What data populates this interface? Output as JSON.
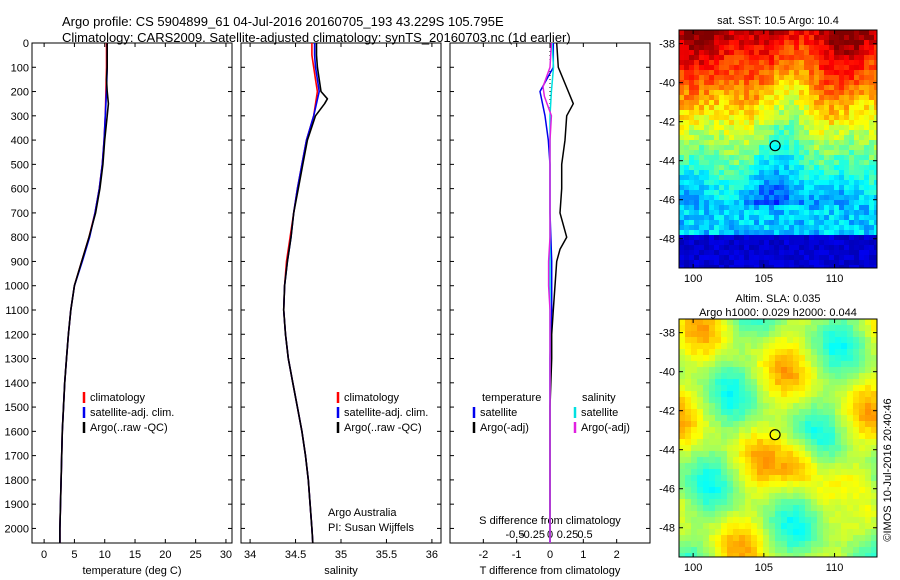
{
  "header": {
    "line1": "Argo profile: CS 5904899_61 04-Jul-2016 20160705_193 43.229S 105.795E",
    "line2": "Climatology: CARS2009. Satellite-adjusted climatology: synTS_20160703.nc (1d earlier)"
  },
  "colors": {
    "climatology": "#ff0000",
    "satellite": "#0000ee",
    "argo": "#000000",
    "satellite_salinity": "#00e0e0",
    "argo_salinity": "#e020e0"
  },
  "chart_data": [
    {
      "type": "line",
      "xlabel": "temperature (deg C)",
      "xticks": [
        0,
        5,
        10,
        15,
        20,
        25,
        30
      ],
      "xlim": [
        -2,
        31
      ],
      "yticks": [
        0,
        100,
        200,
        300,
        400,
        500,
        600,
        700,
        800,
        900,
        1000,
        1100,
        1200,
        1300,
        1400,
        1500,
        1600,
        1700,
        1800,
        1900,
        2000
      ],
      "ylim": [
        2060,
        0
      ],
      "legend": [
        "climatology",
        "satellite-adj. clim.",
        "Argo(..raw -QC)"
      ],
      "series": [
        {
          "name": "climatology",
          "depth": [
            0,
            50,
            100,
            200,
            300,
            400,
            500,
            600,
            700,
            800,
            900,
            1000,
            1100,
            1200,
            1300,
            1400,
            1500,
            1600,
            1700,
            1800,
            1900,
            2000,
            2060
          ],
          "values": [
            10.3,
            10.3,
            10.3,
            10.2,
            10.1,
            9.9,
            9.6,
            9.1,
            8.4,
            7.4,
            6.2,
            5.0,
            4.4,
            4.0,
            3.7,
            3.4,
            3.2,
            3.0,
            2.9,
            2.8,
            2.7,
            2.6,
            2.6
          ]
        },
        {
          "name": "satellite-adj. clim.",
          "depth": [
            0,
            50,
            100,
            200,
            300,
            400,
            500,
            600,
            700,
            800,
            900,
            1000,
            1100,
            1200,
            1300,
            1400,
            1500,
            1600,
            1700,
            1800,
            1900,
            2000,
            2060
          ],
          "values": [
            10.4,
            10.4,
            10.4,
            10.3,
            10.1,
            9.9,
            9.6,
            9.1,
            8.4,
            7.5,
            6.3,
            5.0,
            4.4,
            4.0,
            3.7,
            3.4,
            3.2,
            3.0,
            2.9,
            2.8,
            2.7,
            2.6,
            2.6
          ]
        },
        {
          "name": "Argo(..raw -QC)",
          "depth": [
            0,
            50,
            100,
            150,
            200,
            250,
            300,
            400,
            500,
            600,
            700,
            800,
            900,
            1000,
            1100,
            1200,
            1300,
            1400,
            1500,
            1600,
            1700,
            1800,
            1900,
            2000,
            2060
          ],
          "values": [
            10.4,
            10.4,
            10.4,
            10.3,
            10.4,
            10.6,
            10.4,
            10.0,
            9.7,
            9.2,
            8.5,
            7.4,
            6.2,
            5.0,
            4.4,
            4.0,
            3.7,
            3.4,
            3.2,
            3.0,
            2.9,
            2.8,
            2.7,
            2.6,
            2.6
          ]
        }
      ]
    },
    {
      "type": "line",
      "xlabel": "salinity",
      "xticks": [
        34,
        34.5,
        35,
        35.5,
        36
      ],
      "xticklabels": [
        "34",
        "34.5",
        "35",
        "35.5",
        "36"
      ],
      "xlim": [
        33.9,
        36.1
      ],
      "ylim": [
        2060,
        0
      ],
      "legend": [
        "climatology",
        "satellite-adj. clim.",
        "Argo(..raw -QC)"
      ],
      "annotation": [
        "Argo Australia",
        "PI: Susan Wijffels"
      ],
      "series": [
        {
          "name": "climatology",
          "depth": [
            0,
            50,
            100,
            150,
            200,
            300,
            400,
            500,
            600,
            700,
            800,
            900,
            1000,
            1100,
            1200,
            1300,
            1400,
            1500,
            1600,
            1700,
            1800,
            1900,
            2000,
            2060
          ],
          "values": [
            34.68,
            34.68,
            34.7,
            34.72,
            34.74,
            34.7,
            34.62,
            34.57,
            34.52,
            34.48,
            34.44,
            34.4,
            34.38,
            34.37,
            34.39,
            34.42,
            34.47,
            34.52,
            34.57,
            34.61,
            34.64,
            34.66,
            34.68,
            34.69
          ]
        },
        {
          "name": "satellite-adj. clim.",
          "depth": [
            0,
            50,
            100,
            150,
            200,
            300,
            400,
            500,
            600,
            700,
            800,
            900,
            1000,
            1100,
            1200,
            1300,
            1400,
            1500,
            1600,
            1700,
            1800,
            1900,
            2000,
            2060
          ],
          "values": [
            34.71,
            34.71,
            34.72,
            34.74,
            34.76,
            34.7,
            34.62,
            34.57,
            34.52,
            34.48,
            34.45,
            34.41,
            34.38,
            34.37,
            34.39,
            34.42,
            34.47,
            34.52,
            34.57,
            34.61,
            34.64,
            34.66,
            34.68,
            34.69
          ]
        },
        {
          "name": "Argo(..raw -QC)",
          "depth": [
            0,
            50,
            100,
            150,
            200,
            230,
            250,
            300,
            400,
            500,
            600,
            700,
            800,
            900,
            1000,
            1100,
            1200,
            1300,
            1400,
            1500,
            1600,
            1700,
            1800,
            1900,
            2000,
            2060
          ],
          "values": [
            34.73,
            34.73,
            34.74,
            34.76,
            34.78,
            34.85,
            34.82,
            34.72,
            34.63,
            34.58,
            34.53,
            34.48,
            34.45,
            34.41,
            34.38,
            34.37,
            34.39,
            34.42,
            34.47,
            34.52,
            34.57,
            34.61,
            34.64,
            34.66,
            34.68,
            34.69
          ]
        }
      ]
    },
    {
      "type": "line",
      "xlabel": "T difference from climatology",
      "xlabel2": "S difference from climatology",
      "xticks": [
        -2,
        -1,
        0,
        1,
        2
      ],
      "xlim": [
        -3,
        3
      ],
      "xticks2": [
        -0.5,
        -0.25,
        0,
        0.25,
        0.5
      ],
      "xticklabels2": [
        "-0.5",
        "-0.25",
        "0",
        "0.25",
        "0.5"
      ],
      "ylim": [
        2060,
        0
      ],
      "legend_temperature": {
        "title": "temperature",
        "items": [
          "satellite",
          "Argo(-adj)"
        ]
      },
      "legend_salinity": {
        "title": "salinity",
        "items": [
          "satellite",
          "Argo(-adj)"
        ]
      },
      "series": [
        {
          "name": "temperature satellite",
          "depth": [
            0,
            100,
            200,
            300,
            400,
            500,
            700,
            900,
            1100,
            1300,
            1500,
            1700,
            1900,
            2060
          ],
          "values": [
            0.1,
            0.1,
            -0.3,
            -0.15,
            -0.05,
            0.0,
            0.0,
            0.05,
            0.05,
            0.0,
            0.0,
            0.0,
            0.0,
            0.0
          ]
        },
        {
          "name": "temperature Argo(-adj)",
          "depth": [
            0,
            100,
            150,
            200,
            250,
            300,
            400,
            500,
            600,
            700,
            800,
            850,
            900,
            1000,
            1100,
            1200,
            1300,
            1500,
            1700,
            1900,
            2060
          ],
          "values": [
            0.2,
            0.25,
            0.4,
            0.55,
            0.7,
            0.5,
            0.45,
            0.35,
            0.35,
            0.3,
            0.5,
            0.3,
            0.2,
            0.15,
            0.1,
            0.05,
            0.05,
            0.0,
            0.0,
            0.0,
            0.0
          ]
        },
        {
          "name": "salinity satellite",
          "depth": [
            0,
            100,
            200,
            300,
            400,
            600,
            800,
            1000,
            1200,
            1400,
            1600,
            1800,
            2060
          ],
          "values": [
            0.03,
            0.05,
            0.02,
            0.0,
            0.0,
            0.0,
            0.0,
            0.0,
            0.0,
            0.0,
            0.0,
            0.0,
            0.0
          ]
        },
        {
          "name": "salinity Argo(-adj)",
          "depth": [
            0,
            100,
            180,
            220,
            300,
            400,
            600,
            800,
            900,
            1000,
            1100,
            1300,
            1600,
            1800,
            2060
          ],
          "values": [
            0.02,
            0.0,
            -0.1,
            -0.08,
            0.02,
            0.0,
            0.0,
            0.0,
            -0.02,
            -0.02,
            0.0,
            0.0,
            0.0,
            0.0,
            0.0
          ]
        }
      ]
    },
    {
      "type": "heatmap",
      "title": "sat. SST: 10.5  Argo: 10.4",
      "xticks": [
        100,
        105,
        110
      ],
      "yticks": [
        -38,
        -40,
        -42,
        -44,
        -46,
        -48
      ],
      "xlim": [
        99,
        113
      ],
      "ylim": [
        -49.5,
        -37.3
      ],
      "marker": {
        "lon": 105.795,
        "lat": -43.229
      }
    },
    {
      "type": "heatmap",
      "title": "Altim. SLA: 0.035",
      "subtitle": "Argo h1000: 0.029  h2000: 0.044",
      "xticks": [
        100,
        105,
        110
      ],
      "yticks": [
        -38,
        -40,
        -42,
        -44,
        -46,
        -48
      ],
      "xlim": [
        99,
        113
      ],
      "ylim": [
        -49.5,
        -37.3
      ],
      "marker": {
        "lon": 105.795,
        "lat": -43.229
      }
    }
  ],
  "footer": {
    "credit": "©IMOS 10-Jul-2016 20:40:46"
  }
}
